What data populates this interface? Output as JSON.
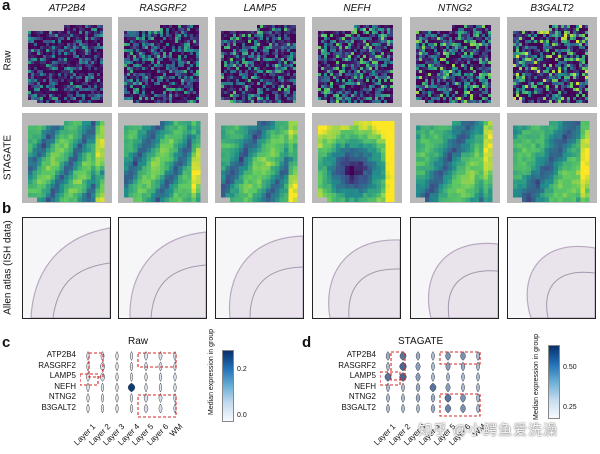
{
  "panel_labels": {
    "a": "a",
    "b": "b",
    "c": "c",
    "d": "d"
  },
  "genes": [
    "ATP2B4",
    "RASGRF2",
    "LAMP5",
    "NEFH",
    "NTNG2",
    "B3GALT2"
  ],
  "row_labels": {
    "raw": "Raw",
    "stagate": "STAGATE",
    "allen": "Allen atlas (ISH data)"
  },
  "panel_c": {
    "title": "Raw",
    "genes": [
      "ATP2B4",
      "RASGRF2",
      "LAMP5",
      "NEFH",
      "NTNG2",
      "B3GALT2"
    ],
    "layers": [
      "Layer 1",
      "Layer 2",
      "Layer 3",
      "Layer 4",
      "Layer 5",
      "Layer 6",
      "WM"
    ],
    "colorbar_title": "Median expression in group",
    "colorbar_ticks": [
      "0.2",
      "0.0"
    ]
  },
  "panel_d": {
    "title": "STAGATE",
    "genes": [
      "ATP2B4",
      "RASGRF2",
      "LAMP5",
      "NEFH",
      "NTNG2",
      "B3GALT2"
    ],
    "layers": [
      "Layer 1",
      "Layer 2",
      "Layer 3",
      "Layer 4",
      "Layer 5",
      "Layer 6",
      "WM"
    ],
    "colorbar_title": "Median expression in group",
    "colorbar_ticks": [
      "0.50",
      "0.25"
    ]
  },
  "watermark": "知乎 @小鳄鱼爱洗澡",
  "colors": {
    "viridis_dark": "#440154",
    "viridis_mid": "#21918c",
    "viridis_bright": "#fde725",
    "tile_bg": "#b9b9b9",
    "highlight_box": "#d62728",
    "blues_dark": "#08306b",
    "blues_light": "#deebf7"
  }
}
